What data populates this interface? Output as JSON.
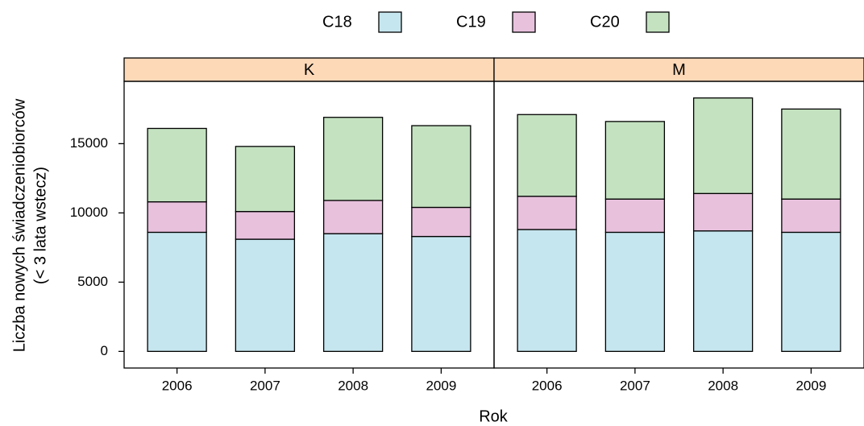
{
  "chart_data": {
    "type": "bar",
    "stacked": true,
    "xlabel": "Rok",
    "ylabel": [
      "Liczba nowych świadczeniobiorców",
      "(< 3 lata wstecz)"
    ],
    "categories": [
      "2006",
      "2007",
      "2008",
      "2009"
    ],
    "ylim": [
      -1200,
      19500
    ],
    "yticks": [
      0,
      5000,
      10000,
      15000
    ],
    "strip_color": "#fdd9b8",
    "panels": [
      {
        "title": "K",
        "series": [
          {
            "name": "C18",
            "color": "#c6e6ef",
            "values": [
              8600,
              8100,
              8500,
              8300
            ]
          },
          {
            "name": "C19",
            "color": "#e8c1dd",
            "values": [
              2200,
              2000,
              2400,
              2100
            ]
          },
          {
            "name": "C20",
            "color": "#c4e2c0",
            "values": [
              5300,
              4700,
              6000,
              5900
            ]
          }
        ]
      },
      {
        "title": "M",
        "series": [
          {
            "name": "C18",
            "color": "#c6e6ef",
            "values": [
              8800,
              8600,
              8700,
              8600
            ]
          },
          {
            "name": "C19",
            "color": "#e8c1dd",
            "values": [
              2400,
              2400,
              2700,
              2400
            ]
          },
          {
            "name": "C20",
            "color": "#c4e2c0",
            "values": [
              5900,
              5600,
              6900,
              6500
            ]
          }
        ]
      }
    ]
  }
}
